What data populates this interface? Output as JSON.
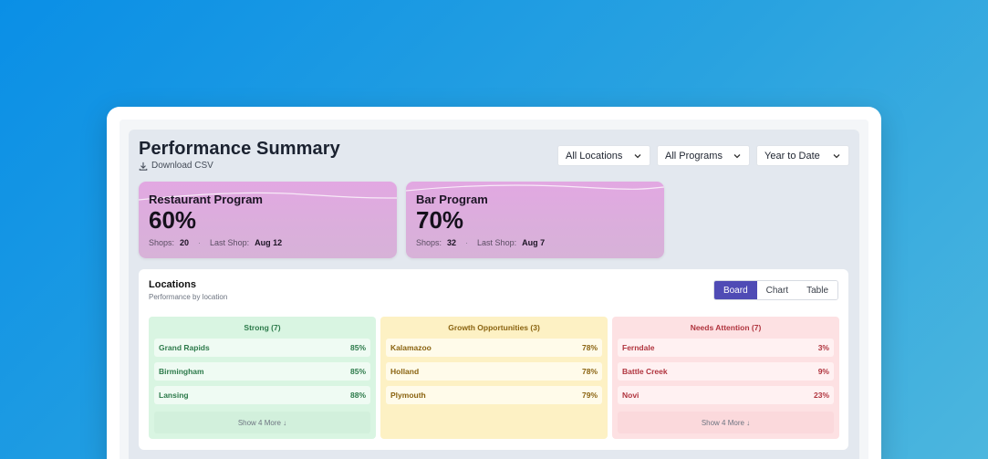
{
  "header": {
    "title": "Performance Summary",
    "download_label": "Download CSV"
  },
  "filters": {
    "locations": "All Locations",
    "programs": "All Programs",
    "date_range": "Year to Date"
  },
  "programs": [
    {
      "name": "Restaurant Program",
      "percent": "60%",
      "shops_label": "Shops:",
      "shops": "20",
      "last_shop_label": "Last Shop:",
      "last_shop": "Aug 12"
    },
    {
      "name": "Bar Program",
      "percent": "70%",
      "shops_label": "Shops:",
      "shops": "32",
      "last_shop_label": "Last Shop:",
      "last_shop": "Aug 7"
    }
  ],
  "locations": {
    "title": "Locations",
    "subtitle": "Performance by location",
    "views": [
      "Board",
      "Chart",
      "Table"
    ],
    "active_view": "Board",
    "columns": [
      {
        "heading": "Strong (7)",
        "rows": [
          {
            "name": "Grand Rapids",
            "pct": "85%"
          },
          {
            "name": "Birmingham",
            "pct": "85%"
          },
          {
            "name": "Lansing",
            "pct": "88%"
          }
        ],
        "show_more": "Show 4 More ↓"
      },
      {
        "heading": "Growth Opportunities (3)",
        "rows": [
          {
            "name": "Kalamazoo",
            "pct": "78%"
          },
          {
            "name": "Holland",
            "pct": "78%"
          },
          {
            "name": "Plymouth",
            "pct": "79%"
          }
        ]
      },
      {
        "heading": "Needs Attention (7)",
        "rows": [
          {
            "name": "Ferndale",
            "pct": "3%"
          },
          {
            "name": "Battle Creek",
            "pct": "9%"
          },
          {
            "name": "Novi",
            "pct": "23%"
          }
        ],
        "show_more": "Show 4 More ↓"
      }
    ]
  },
  "colors": {
    "accent": "#4f4bb5",
    "strong": "#2c7a4a",
    "growth": "#8a6310",
    "attention": "#b0343e"
  }
}
